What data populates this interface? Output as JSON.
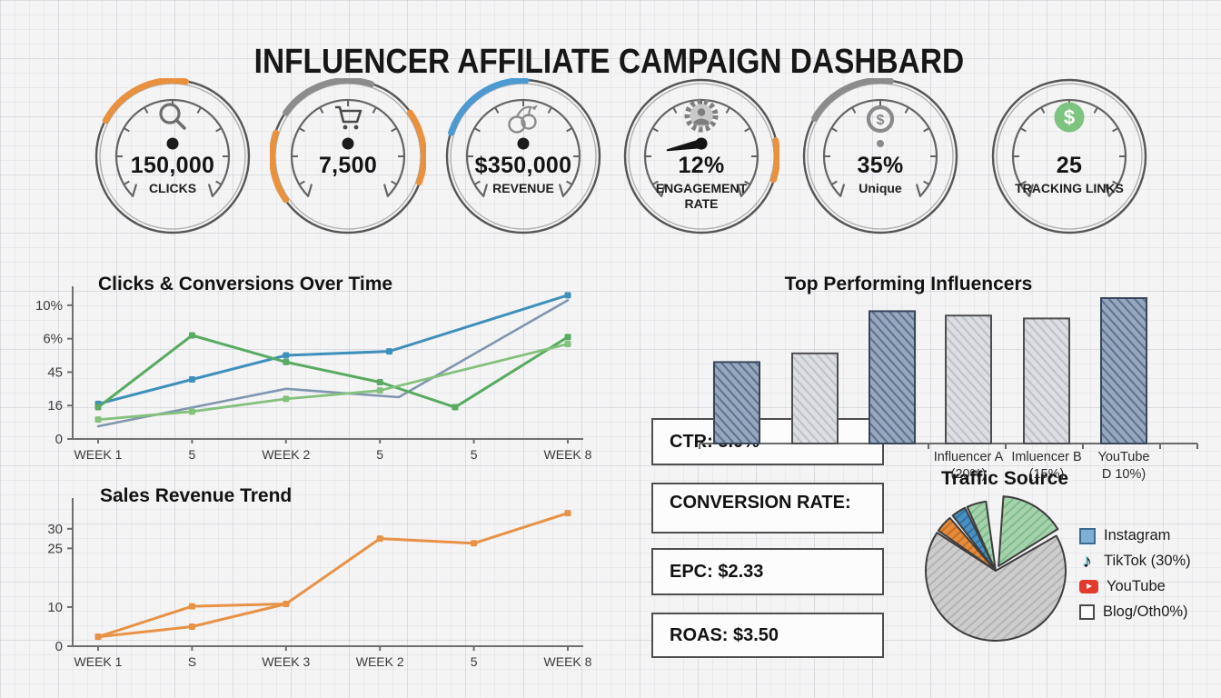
{
  "title": "INFLUENCER AFFILIATE CAMPAIGN DASHBARD",
  "gauges": [
    {
      "value": "150,000",
      "label": "CLICKS",
      "icon": "search-icon",
      "dot": "large",
      "arcs": [
        {
          "color": "#E8913F",
          "start": -62,
          "end": 10
        }
      ]
    },
    {
      "value": "7,500",
      "label": "",
      "icon": "cart-icon",
      "dot": "large",
      "arcs": [
        {
          "color": "#8C8C8C",
          "start": -55,
          "end": 18
        },
        {
          "color": "#E8913F",
          "start": -125,
          "end": -72
        },
        {
          "color": "#E8913F",
          "start": 55,
          "end": 110
        }
      ]
    },
    {
      "value": "$350,000",
      "label": "REVENUE",
      "icon": "cherries-icon",
      "dot": "large",
      "arcs": [
        {
          "color": "#4B9BD2",
          "start": -72,
          "end": 2
        }
      ]
    },
    {
      "value": "12%",
      "label": "ENGAGEMENT RATE",
      "icon": "gear-user-icon",
      "dot": "large",
      "needle_deg_cw_from_12": 259,
      "arcs": [
        {
          "color": "#E8913F",
          "start": 78,
          "end": 108
        }
      ]
    },
    {
      "value": "35%",
      "label": "Unique",
      "icon": "dollar-circle-icon",
      "dot": "small",
      "arcs": [
        {
          "color": "#8C8C8C",
          "start": -60,
          "end": 8
        }
      ]
    },
    {
      "value": "25",
      "label": "TRACKING LINKS",
      "icon": "dollar-green-icon",
      "dot": "none",
      "arcs": []
    }
  ],
  "kpis": [
    {
      "label": "CTR: 5.0%"
    },
    {
      "label": "CONVERSION RATE:"
    },
    {
      "label": "EPC: $2.33"
    },
    {
      "label": "ROAS: $3.50"
    }
  ],
  "chart_data": [
    {
      "type": "line",
      "title": "Clicks & Conversions Over Time",
      "categories": [
        "WEEK 1",
        "5",
        "WEEK 2",
        "5",
        "5",
        "WEEK 8"
      ],
      "y_tick_labels": [
        "0",
        "16",
        "45",
        "6%",
        "10%"
      ],
      "y_scale_note": "garbled hand-drawn axis; values expressed in tick units (ticks at 0,1,2,3,4)",
      "ylim": [
        0,
        4.35
      ],
      "series": [
        {
          "name": "clicks-blue",
          "color": "#3F8FBB",
          "width": 3,
          "marker": true,
          "points": [
            [
              0,
              1.05
            ],
            [
              1,
              1.78
            ],
            [
              2,
              2.5
            ],
            [
              3.1,
              2.62
            ],
            [
              5,
              4.3
            ]
          ]
        },
        {
          "name": "steel-blue",
          "color": "#8096AD",
          "width": 2.6,
          "marker": false,
          "points": [
            [
              0,
              0.38
            ],
            [
              2,
              1.5
            ],
            [
              3.2,
              1.25
            ],
            [
              5,
              4.15
            ]
          ]
        },
        {
          "name": "green-a",
          "color": "#58AB60",
          "width": 3,
          "marker": true,
          "points": [
            [
              0,
              0.95
            ],
            [
              1,
              3.1
            ],
            [
              2,
              2.3
            ],
            [
              3,
              1.7
            ],
            [
              3.8,
              0.95
            ],
            [
              5,
              3.05
            ]
          ]
        },
        {
          "name": "green-b",
          "color": "#84C17D",
          "width": 2.8,
          "marker": true,
          "points": [
            [
              0,
              0.58
            ],
            [
              1,
              0.82
            ],
            [
              2,
              1.2
            ],
            [
              3,
              1.45
            ],
            [
              5,
              2.84
            ]
          ]
        }
      ]
    },
    {
      "type": "line",
      "title": "Sales Revenue Trend",
      "categories": [
        "WEEK 1",
        "S",
        "WEEK 3",
        "WEEK 2",
        "5",
        "WEEK 8"
      ],
      "y_tick_values": [
        0,
        10,
        25,
        30
      ],
      "ylim": [
        0,
        36
      ],
      "series": [
        {
          "name": "revenue-upper",
          "color": "#E89245",
          "width": 3,
          "marker": true,
          "points": [
            [
              0,
              2.4
            ],
            [
              1,
              10.2
            ],
            [
              2,
              10.8
            ],
            [
              3,
              27.5
            ],
            [
              4,
              26.3
            ],
            [
              5,
              34
            ]
          ]
        },
        {
          "name": "revenue-lower",
          "color": "#E89245",
          "width": 3,
          "marker": true,
          "points": [
            [
              0,
              2.4
            ],
            [
              1,
              5.0
            ],
            [
              2,
              10.8
            ]
          ]
        }
      ]
    },
    {
      "type": "bar",
      "title": "Top Performing Influencers",
      "value_note": "relative heights, % of tallest bar",
      "bars": [
        {
          "label_lines": [],
          "value": 56,
          "variant": "dark"
        },
        {
          "label_lines": [],
          "value": 62,
          "variant": "light"
        },
        {
          "label_lines": [],
          "value": 91,
          "variant": "dark"
        },
        {
          "label_lines": [
            "Influencer A",
            "(20%)"
          ],
          "value": 88,
          "variant": "light"
        },
        {
          "label_lines": [
            "Imluencer B",
            "(15%)"
          ],
          "value": 86,
          "variant": "light"
        },
        {
          "label_lines": [
            "YouTube",
            "D  10%)"
          ],
          "value": 100,
          "variant": "dark"
        }
      ],
      "bar_colors": {
        "dark": {
          "base": "#97A7BD",
          "hatch": "#5E7390",
          "border": "#39465A"
        },
        "light": {
          "base": "#DCDEE2",
          "hatch": "#BDC1C8",
          "border": "#4D4D4D"
        }
      }
    },
    {
      "type": "pie",
      "title": "Traffic Source",
      "angle_note": "degrees clockwise from 12 o'clock",
      "slices": [
        {
          "name": "green-main",
          "color": "#A5D2AB",
          "hatch": "#7DBB8C",
          "start": 4,
          "end": 58,
          "explode": 6
        },
        {
          "name": "gray-main",
          "color": "#CDCDCD",
          "hatch": "#B3B3B3",
          "start": 60,
          "end": 303,
          "explode": 0
        },
        {
          "name": "orange",
          "color": "#E58B3E",
          "hatch": "#C96F22",
          "start": 305,
          "end": 319,
          "explode": 0
        },
        {
          "name": "blue",
          "color": "#4A90C4",
          "hatch": "#33729F",
          "start": 322,
          "end": 334,
          "explode": 0
        },
        {
          "name": "green-sliver",
          "color": "#A5D2AB",
          "hatch": "#7DBB8C",
          "start": 336,
          "end": 352,
          "explode": 0
        }
      ],
      "legend": [
        {
          "label": "Instagram",
          "swatch": "instagram-square"
        },
        {
          "label": "TikTok (30%)",
          "swatch": "tiktok-note",
          "glyph": "♪"
        },
        {
          "label": "YouTube",
          "swatch": "youtube-play"
        },
        {
          "label": "Blog/Oth0%)",
          "swatch": "blog-square"
        }
      ]
    }
  ]
}
